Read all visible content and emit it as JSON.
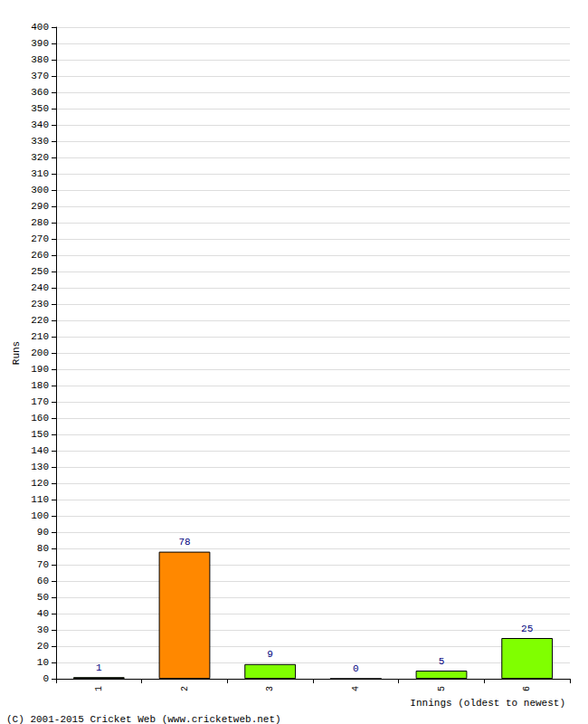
{
  "chart_data": {
    "type": "bar",
    "x_label": "Innings (oldest to newest)",
    "y_label": "Runs",
    "annotations": [
      "(C) 2001-2015 Cricket Web (www.cricketweb.net)"
    ],
    "categories": [
      "1",
      "2",
      "3",
      "4",
      "5",
      "6"
    ],
    "values": [
      1,
      78,
      9,
      0,
      5,
      25
    ],
    "colors": [
      "#80ff00",
      "#ff8800",
      "#80ff00",
      "#80ff00",
      "#80ff00",
      "#80ff00"
    ],
    "ylim": [
      0,
      400
    ],
    "yticks": [
      0,
      10,
      20,
      30,
      40,
      50,
      60,
      70,
      80,
      90,
      100,
      110,
      120,
      130,
      140,
      150,
      160,
      170,
      180,
      190,
      200,
      210,
      220,
      230,
      240,
      250,
      260,
      270,
      280,
      290,
      300,
      310,
      320,
      330,
      340,
      350,
      360,
      370,
      380,
      390,
      400
    ],
    "grid": true,
    "data_labels": true
  }
}
